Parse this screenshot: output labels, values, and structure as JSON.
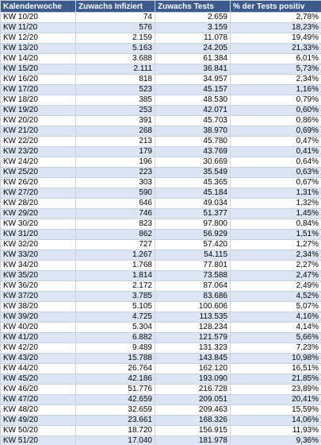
{
  "table": {
    "header": [
      "Kalenderwoche",
      "Zuwachs Infiziert",
      "Zuwachs Tests",
      "% der Tests positiv"
    ],
    "rows": [
      [
        "KW 10/20",
        "74",
        "2.659",
        "2,78%"
      ],
      [
        "KW 11/20",
        "576",
        "3.159",
        "18,23%"
      ],
      [
        "KW 12/20",
        "2.159",
        "11.078",
        "19,49%"
      ],
      [
        "KW 13/20",
        "5.163",
        "24.205",
        "21,33%"
      ],
      [
        "KW 14/20",
        "3.688",
        "61.384",
        "6,01%"
      ],
      [
        "KW 15/20",
        "2.111",
        "36.841",
        "5,73%"
      ],
      [
        "KW 16/20",
        "818",
        "34.957",
        "2,34%"
      ],
      [
        "KW 17/20",
        "523",
        "45.157",
        "1,16%"
      ],
      [
        "KW 18/20",
        "385",
        "48.530",
        "0,79%"
      ],
      [
        "KW 19/20",
        "253",
        "42.071",
        "0,60%"
      ],
      [
        "KW 20/20",
        "391",
        "45.703",
        "0,86%"
      ],
      [
        "KW 21/20",
        "268",
        "38.970",
        "0,69%"
      ],
      [
        "KW 22/20",
        "213",
        "45.780",
        "0,47%"
      ],
      [
        "KW 23/20",
        "179",
        "43.769",
        "0,41%"
      ],
      [
        "KW 24/20",
        "196",
        "30.669",
        "0,64%"
      ],
      [
        "KW 25/20",
        "223",
        "35.549",
        "0,63%"
      ],
      [
        "KW 26/20",
        "303",
        "45.365",
        "0,67%"
      ],
      [
        "KW 27/20",
        "590",
        "45.184",
        "1,31%"
      ],
      [
        "KW 28/20",
        "646",
        "49.034",
        "1,32%"
      ],
      [
        "KW 29/20",
        "746",
        "51.377",
        "1,45%"
      ],
      [
        "KW 30/20",
        "823",
        "97.800",
        "0,84%"
      ],
      [
        "KW 31/20",
        "862",
        "56.929",
        "1,51%"
      ],
      [
        "KW 32/20",
        "727",
        "57.420",
        "1,27%"
      ],
      [
        "KW 33/20",
        "1.267",
        "54.115",
        "2,34%"
      ],
      [
        "KW 34/20",
        "1.768",
        "77.801",
        "2,27%"
      ],
      [
        "KW 35/20",
        "1.814",
        "73.588",
        "2,47%"
      ],
      [
        "KW 36/20",
        "2.172",
        "87.064",
        "2,49%"
      ],
      [
        "KW 37/20",
        "3.785",
        "83.686",
        "4,52%"
      ],
      [
        "KW 38/20",
        "5.105",
        "100.606",
        "5,07%"
      ],
      [
        "KW 39/20",
        "4.725",
        "113.535",
        "4,16%"
      ],
      [
        "KW 40/20",
        "5.304",
        "128.234",
        "4,14%"
      ],
      [
        "KW 41/20",
        "6.882",
        "121.579",
        "5,66%"
      ],
      [
        "KW 42/20",
        "9.489",
        "131.323",
        "7,23%"
      ],
      [
        "KW 43/20",
        "15.788",
        "143.845",
        "10,98%"
      ],
      [
        "KW 44/20",
        "26.764",
        "162.120",
        "16,51%"
      ],
      [
        "KW 45/20",
        "42.186",
        "193.090",
        "21,85%"
      ],
      [
        "KW 46/20",
        "51.776",
        "216.728",
        "23,89%"
      ],
      [
        "KW 47/20",
        "42.659",
        "209.051",
        "20,41%"
      ],
      [
        "KW 48/20",
        "32.659",
        "209.463",
        "15,59%"
      ],
      [
        "KW 49/20",
        "23.661",
        "168.326",
        "14,06%"
      ],
      [
        "KW 50/20",
        "18.720",
        "156.915",
        "11,93%"
      ],
      [
        "KW 51/20",
        "17.040",
        "181.978",
        "9,36%"
      ]
    ]
  }
}
